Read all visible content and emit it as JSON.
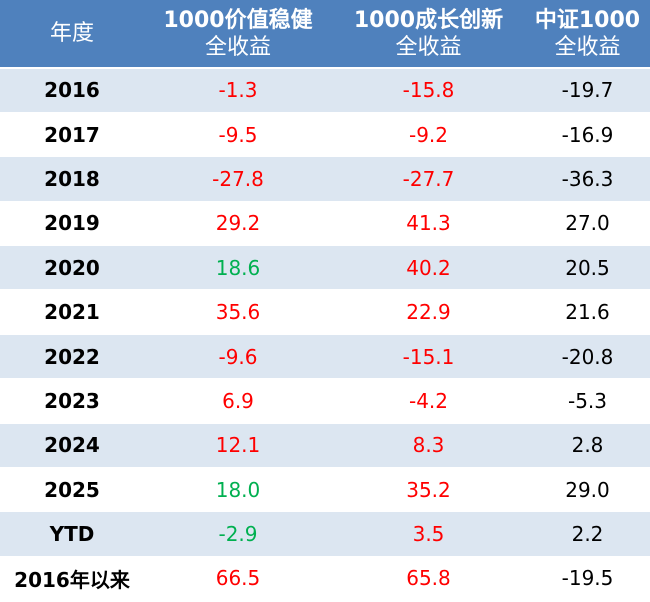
{
  "colors": {
    "header_bg": "#4f81bd",
    "band": "#dce6f1",
    "positive": "#ff0000",
    "negative_special": "#00b050",
    "plain": "#000000"
  },
  "header": {
    "year": "年度",
    "col1_line1": "1000价值稳健",
    "col1_line2": "全收益",
    "col2_line1": "1000成长创新",
    "col2_line2": "全收益",
    "col3_line1": "中证1000",
    "col3_line2": "全收益"
  },
  "rows": [
    {
      "year": "2016",
      "v1": "-1.3",
      "v2": "-15.8",
      "v3": "-19.7"
    },
    {
      "year": "2017",
      "v1": "-9.5",
      "v2": "-9.2",
      "v3": "-16.9"
    },
    {
      "year": "2018",
      "v1": "-27.8",
      "v2": "-27.7",
      "v3": "-36.3"
    },
    {
      "year": "2019",
      "v1": "29.2",
      "v2": "41.3",
      "v3": "27.0"
    },
    {
      "year": "2020",
      "v1": "18.6",
      "v2": "40.2",
      "v3": "20.5"
    },
    {
      "year": "2021",
      "v1": "35.6",
      "v2": "22.9",
      "v3": "21.6"
    },
    {
      "year": "2022",
      "v1": "-9.6",
      "v2": "-15.1",
      "v3": "-20.8"
    },
    {
      "year": "2023",
      "v1": "6.9",
      "v2": "-4.2",
      "v3": "-5.3"
    },
    {
      "year": "2024",
      "v1": "12.1",
      "v2": "8.3",
      "v3": "2.8"
    },
    {
      "year": "2025",
      "v1": "18.0",
      "v2": "35.2",
      "v3": "29.0"
    },
    {
      "year": "YTD",
      "v1": "-2.9",
      "v2": "3.5",
      "v3": "2.2"
    },
    {
      "year": "2016年以来",
      "v1": "66.5",
      "v2": "65.8",
      "v3": "-19.5"
    }
  ]
}
